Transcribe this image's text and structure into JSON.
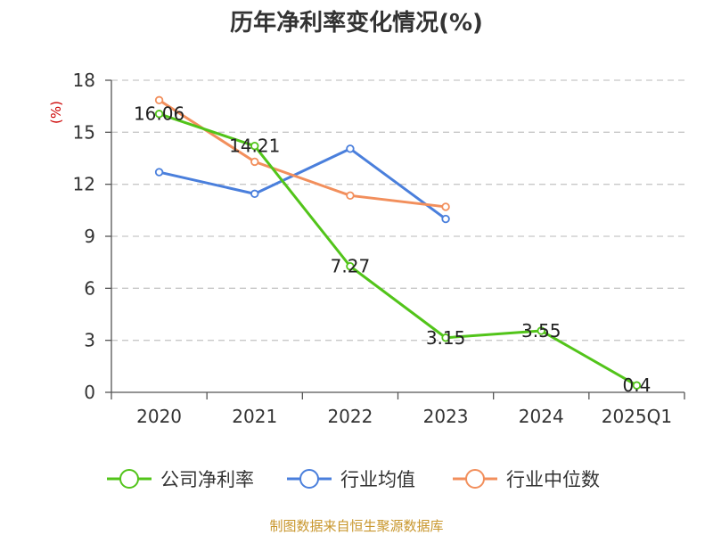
{
  "chart_data": {
    "type": "line",
    "title": "历年净利率变化情况(%)",
    "ylabel": "(%)",
    "categories": [
      "2020",
      "2021",
      "2022",
      "2023",
      "2024",
      "2025Q1"
    ],
    "ylim": [
      0,
      18
    ],
    "yticks": [
      "0",
      "3",
      "6",
      "9",
      "12",
      "15",
      "18"
    ],
    "grid": true,
    "legend_position": "bottom",
    "series": [
      {
        "name": "公司净利率",
        "color": "#52c41a",
        "values": [
          16.06,
          14.21,
          7.27,
          3.15,
          3.55,
          0.4
        ],
        "labels": [
          "16.06",
          "14.21",
          "7.27",
          "3.15",
          "3.55",
          "0.4"
        ]
      },
      {
        "name": "行业均值",
        "color": "#4a7fdc",
        "values": [
          12.7,
          11.45,
          14.05,
          10.0,
          null,
          null
        ]
      },
      {
        "name": "行业中位数",
        "color": "#f28f5c",
        "values": [
          16.85,
          13.3,
          11.35,
          10.7,
          null,
          null
        ]
      }
    ]
  },
  "footer": {
    "source": "制图数据来自恒生聚源数据库"
  }
}
